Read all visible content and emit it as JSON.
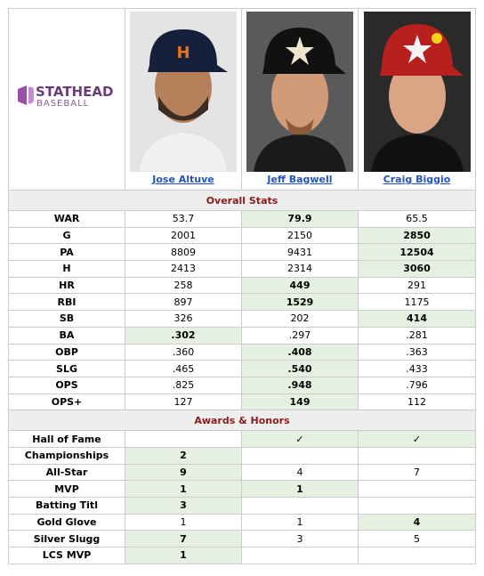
{
  "logo": {
    "top": "STATHEAD",
    "bottom": "BASEBALL"
  },
  "players": [
    "Jose Altuve",
    "Jeff Bagwell",
    "Craig Biggio"
  ],
  "sections": [
    {
      "title": "Overall Stats",
      "rows": [
        {
          "label": "WAR",
          "values": [
            "53.7",
            "79.9",
            "65.5"
          ],
          "best": [
            1
          ]
        },
        {
          "label": "G",
          "values": [
            "2001",
            "2150",
            "2850"
          ],
          "best": [
            2
          ]
        },
        {
          "label": "PA",
          "values": [
            "8809",
            "9431",
            "12504"
          ],
          "best": [
            2
          ]
        },
        {
          "label": "H",
          "values": [
            "2413",
            "2314",
            "3060"
          ],
          "best": [
            2
          ]
        },
        {
          "label": "HR",
          "values": [
            "258",
            "449",
            "291"
          ],
          "best": [
            1
          ]
        },
        {
          "label": "RBI",
          "values": [
            "897",
            "1529",
            "1175"
          ],
          "best": [
            1
          ]
        },
        {
          "label": "SB",
          "values": [
            "326",
            "202",
            "414"
          ],
          "best": [
            2
          ]
        },
        {
          "label": "BA",
          "values": [
            ".302",
            ".297",
            ".281"
          ],
          "best": [
            0
          ]
        },
        {
          "label": "OBP",
          "values": [
            ".360",
            ".408",
            ".363"
          ],
          "best": [
            1
          ]
        },
        {
          "label": "SLG",
          "values": [
            ".465",
            ".540",
            ".433"
          ],
          "best": [
            1
          ]
        },
        {
          "label": "OPS",
          "values": [
            ".825",
            ".948",
            ".796"
          ],
          "best": [
            1
          ]
        },
        {
          "label": "OPS+",
          "values": [
            "127",
            "149",
            "112"
          ],
          "best": [
            1
          ]
        }
      ]
    },
    {
      "title": "Awards & Honors",
      "rows": [
        {
          "label": "Hall of Fame",
          "values": [
            null,
            "✓",
            "✓"
          ],
          "best": [
            1,
            2
          ]
        },
        {
          "label": "Championships",
          "values": [
            "2",
            null,
            null
          ],
          "best": [
            0
          ]
        },
        {
          "label": "All-Star",
          "values": [
            "9",
            "4",
            "7"
          ],
          "best": [
            0
          ]
        },
        {
          "label": "MVP",
          "values": [
            "1",
            "1",
            null
          ],
          "best": [
            0,
            1
          ]
        },
        {
          "label": "Batting Titl",
          "values": [
            "3",
            null,
            null
          ],
          "best": [
            0
          ]
        },
        {
          "label": "Gold Glove",
          "values": [
            "1",
            "1",
            "4"
          ],
          "best": [
            2
          ]
        },
        {
          "label": "Silver Slugg",
          "values": [
            "7",
            "3",
            "5"
          ],
          "best": [
            0
          ]
        },
        {
          "label": "LCS MVP",
          "values": [
            "1",
            null,
            null
          ],
          "best": [
            0
          ]
        }
      ]
    }
  ]
}
